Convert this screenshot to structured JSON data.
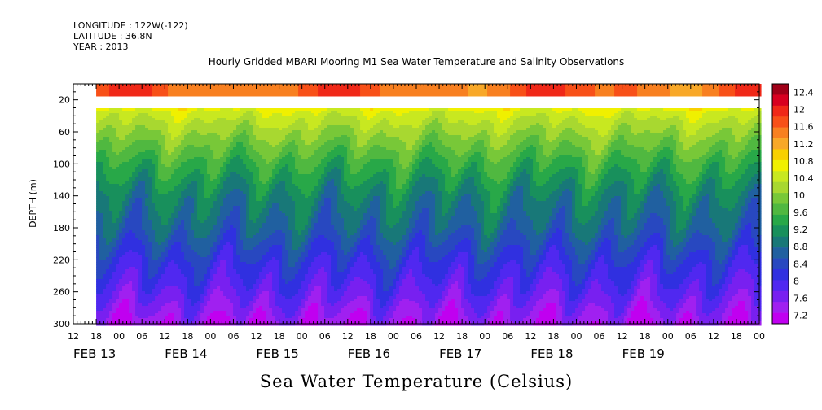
{
  "header": {
    "longitude": "LONGITUDE : 122W(-122)",
    "latitude": "LATITUDE : 36.8N",
    "year": "YEAR : 2013"
  },
  "chart_data": {
    "type": "heatmap",
    "title": "Hourly Gridded MBARI Mooring M1 Sea Water Temperature and Salinity Observations",
    "ylabel": "DEPTH (m)",
    "xlabel": "Sea Water Temperature (Celsius)",
    "ylim": [
      300,
      0
    ],
    "y_ticks": [
      "20",
      "60",
      "100",
      "140",
      "180",
      "220",
      "260",
      "300"
    ],
    "x_hour_ticks": [
      "12",
      "18",
      "00",
      "06",
      "12",
      "18",
      "00",
      "06",
      "12",
      "18",
      "00",
      "06",
      "12",
      "18",
      "00",
      "06",
      "12",
      "18",
      "00",
      "06",
      "12",
      "18",
      "00",
      "06",
      "12",
      "18",
      "00",
      "06",
      "12",
      "18",
      "00"
    ],
    "x_day_labels": [
      "FEB 13",
      "FEB 14",
      "FEB 15",
      "FEB 16",
      "FEB 17",
      "FEB 18",
      "FEB 19"
    ],
    "x_range": [
      "FEB 13 12:00",
      "FEB 20 00:00"
    ],
    "data_start": "FEB 13 18:00",
    "no_data_depth_range_m": [
      15,
      30
    ],
    "colorbar": {
      "levels": [
        "12.4",
        "12",
        "11.6",
        "11.2",
        "10.8",
        "10.4",
        "10",
        "9.6",
        "9.2",
        "8.8",
        "8.4",
        "8",
        "7.6",
        "7.2"
      ],
      "colors": [
        "#a00018",
        "#d80020",
        "#f02818",
        "#f85018",
        "#f88020",
        "#f8a828",
        "#f8d000",
        "#f0f000",
        "#c8e820",
        "#a8d830",
        "#78c838",
        "#50b840",
        "#28a848",
        "#18905c",
        "#187878",
        "#2060a0",
        "#2848c0",
        "#3030e0",
        "#5028f0",
        "#7820f0",
        "#a020f0",
        "#c000f0"
      ]
    },
    "temperature_profile": [
      {
        "depth_m": 5,
        "celsius": 11.8
      },
      {
        "depth_m": 35,
        "celsius": 10.5
      },
      {
        "depth_m": 60,
        "celsius": 10.1
      },
      {
        "depth_m": 100,
        "celsius": 9.5
      },
      {
        "depth_m": 140,
        "celsius": 9.0
      },
      {
        "depth_m": 180,
        "celsius": 8.7
      },
      {
        "depth_m": 220,
        "celsius": 8.2
      },
      {
        "depth_m": 260,
        "celsius": 7.8
      },
      {
        "depth_m": 300,
        "celsius": 7.3
      }
    ]
  }
}
